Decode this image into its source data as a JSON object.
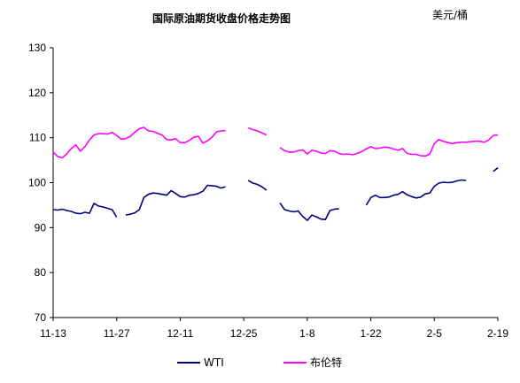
{
  "chart_data": {
    "type": "line",
    "title": "国际原油期货收盘价格走势图",
    "unit": "美元/桶",
    "ylim": [
      70,
      130
    ],
    "yticks": [
      70,
      80,
      90,
      100,
      110,
      120,
      130
    ],
    "xticks": [
      "11-13",
      "11-27",
      "12-11",
      "12-25",
      "1-8",
      "1-22",
      "2-5",
      "2-19"
    ],
    "grid": false,
    "legend_position": "bottom",
    "series": [
      {
        "name": "WTI",
        "color": "#000080",
        "segments": [
          [
            [
              "11-13",
              94.0
            ],
            [
              "11-14",
              93.9
            ],
            [
              "11-15",
              94.1
            ],
            [
              "11-16",
              93.8
            ],
            [
              "11-17",
              93.6
            ],
            [
              "11-18",
              93.2
            ],
            [
              "11-19",
              93.1
            ],
            [
              "11-20",
              93.4
            ],
            [
              "11-21",
              93.2
            ],
            [
              "11-22",
              95.4
            ],
            [
              "11-23",
              94.8
            ],
            [
              "11-24",
              94.6
            ],
            [
              "11-25",
              94.3
            ],
            [
              "11-26",
              94.0
            ],
            [
              "11-27",
              92.3
            ]
          ],
          [
            [
              "11-29",
              92.8
            ],
            [
              "11-30",
              93.0
            ],
            [
              "12-1",
              93.3
            ],
            [
              "12-2",
              94.0
            ],
            [
              "12-3",
              96.7
            ],
            [
              "12-4",
              97.4
            ],
            [
              "12-5",
              97.7
            ],
            [
              "12-6",
              97.6
            ],
            [
              "12-7",
              97.4
            ],
            [
              "12-8",
              97.2
            ],
            [
              "12-9",
              98.2
            ],
            [
              "12-10",
              97.6
            ],
            [
              "12-11",
              96.9
            ],
            [
              "12-12",
              96.8
            ],
            [
              "12-13",
              97.2
            ],
            [
              "12-14",
              97.3
            ],
            [
              "12-15",
              97.6
            ],
            [
              "12-16",
              98.1
            ],
            [
              "12-17",
              99.4
            ],
            [
              "12-18",
              99.3
            ],
            [
              "12-19",
              99.2
            ],
            [
              "12-20",
              98.8
            ],
            [
              "12-21",
              99.1
            ]
          ],
          [
            [
              "12-26",
              100.5
            ],
            [
              "12-27",
              99.9
            ],
            [
              "12-28",
              99.6
            ],
            [
              "12-29",
              99.1
            ],
            [
              "12-30",
              98.3
            ]
          ],
          [
            [
              "1-2",
              95.5
            ],
            [
              "1-3",
              94.0
            ],
            [
              "1-4",
              93.7
            ],
            [
              "1-5",
              93.5
            ],
            [
              "1-6",
              93.7
            ],
            [
              "1-7",
              92.5
            ],
            [
              "1-8",
              91.6
            ],
            [
              "1-9",
              92.8
            ],
            [
              "1-10",
              92.4
            ],
            [
              "1-11",
              91.9
            ],
            [
              "1-12",
              91.8
            ],
            [
              "1-13",
              93.8
            ],
            [
              "1-14",
              94.1
            ],
            [
              "1-15",
              94.2
            ]
          ],
          [
            [
              "1-21",
              95.0
            ],
            [
              "1-22",
              96.7
            ],
            [
              "1-23",
              97.2
            ],
            [
              "1-24",
              96.7
            ],
            [
              "1-25",
              96.7
            ],
            [
              "1-26",
              96.8
            ],
            [
              "1-27",
              97.2
            ],
            [
              "1-28",
              97.4
            ],
            [
              "1-29",
              98.0
            ],
            [
              "1-30",
              97.3
            ],
            [
              "1-31",
              96.9
            ],
            [
              "2-1",
              96.6
            ],
            [
              "2-2",
              96.8
            ],
            [
              "2-3",
              97.5
            ],
            [
              "2-4",
              97.7
            ],
            [
              "2-5",
              99.2
            ],
            [
              "2-6",
              99.9
            ],
            [
              "2-7",
              100.1
            ],
            [
              "2-8",
              100.0
            ],
            [
              "2-9",
              100.1
            ],
            [
              "2-10",
              100.4
            ],
            [
              "2-11",
              100.6
            ],
            [
              "2-12",
              100.5
            ]
          ],
          [
            [
              "2-18",
              102.5
            ],
            [
              "2-19",
              103.3
            ]
          ]
        ]
      },
      {
        "name": "布伦特",
        "color": "#ff00ff",
        "segments": [
          [
            [
              "11-13",
              106.8
            ],
            [
              "11-14",
              105.8
            ],
            [
              "11-15",
              105.5
            ],
            [
              "11-16",
              106.4
            ],
            [
              "11-17",
              107.6
            ],
            [
              "11-18",
              108.4
            ],
            [
              "11-19",
              107.0
            ],
            [
              "11-20",
              108.0
            ],
            [
              "11-21",
              109.5
            ],
            [
              "11-22",
              110.6
            ],
            [
              "11-23",
              110.9
            ],
            [
              "11-24",
              110.9
            ],
            [
              "11-25",
              110.8
            ],
            [
              "11-26",
              111.2
            ],
            [
              "11-27",
              110.5
            ],
            [
              "11-28",
              109.7
            ],
            [
              "11-29",
              109.8
            ],
            [
              "11-30",
              110.3
            ],
            [
              "12-1",
              111.2
            ],
            [
              "12-2",
              112.0
            ],
            [
              "12-3",
              112.3
            ],
            [
              "12-4",
              111.5
            ],
            [
              "12-5",
              111.4
            ],
            [
              "12-6",
              111.0
            ],
            [
              "12-7",
              110.6
            ],
            [
              "12-8",
              109.6
            ],
            [
              "12-9",
              109.5
            ],
            [
              "12-10",
              109.8
            ],
            [
              "12-11",
              108.9
            ],
            [
              "12-12",
              108.9
            ],
            [
              "12-13",
              109.4
            ],
            [
              "12-14",
              110.1
            ],
            [
              "12-15",
              110.3
            ],
            [
              "12-16",
              108.8
            ],
            [
              "12-17",
              109.3
            ],
            [
              "12-18",
              110.1
            ],
            [
              "12-19",
              111.3
            ],
            [
              "12-20",
              111.5
            ],
            [
              "12-21",
              111.6
            ]
          ],
          [
            [
              "12-26",
              112.2
            ],
            [
              "12-27",
              111.8
            ],
            [
              "12-28",
              111.5
            ],
            [
              "12-29",
              111.1
            ],
            [
              "12-30",
              110.6
            ]
          ],
          [
            [
              "1-2",
              107.8
            ],
            [
              "1-3",
              107.1
            ],
            [
              "1-4",
              106.8
            ],
            [
              "1-5",
              106.8
            ],
            [
              "1-6",
              107.1
            ],
            [
              "1-7",
              107.3
            ],
            [
              "1-8",
              106.4
            ],
            [
              "1-9",
              107.2
            ],
            [
              "1-10",
              107.0
            ],
            [
              "1-11",
              106.6
            ],
            [
              "1-12",
              106.5
            ],
            [
              "1-13",
              107.1
            ],
            [
              "1-14",
              107.0
            ],
            [
              "1-15",
              106.5
            ],
            [
              "1-16",
              106.3
            ],
            [
              "1-17",
              106.4
            ],
            [
              "1-18",
              106.2
            ],
            [
              "1-19",
              106.5
            ],
            [
              "1-20",
              106.9
            ],
            [
              "1-21",
              107.5
            ],
            [
              "1-22",
              108.0
            ],
            [
              "1-23",
              107.6
            ],
            [
              "1-24",
              107.7
            ],
            [
              "1-25",
              107.9
            ],
            [
              "1-26",
              107.8
            ],
            [
              "1-27",
              107.5
            ],
            [
              "1-28",
              107.2
            ],
            [
              "1-29",
              107.6
            ],
            [
              "1-30",
              106.5
            ],
            [
              "1-31",
              106.3
            ],
            [
              "2-1",
              106.3
            ],
            [
              "2-2",
              106.0
            ],
            [
              "2-3",
              105.9
            ],
            [
              "2-4",
              106.4
            ],
            [
              "2-5",
              108.7
            ],
            [
              "2-6",
              109.6
            ],
            [
              "2-7",
              109.2
            ],
            [
              "2-8",
              108.9
            ],
            [
              "2-9",
              108.7
            ],
            [
              "2-10",
              108.9
            ],
            [
              "2-11",
              109.0
            ],
            [
              "2-12",
              109.0
            ],
            [
              "2-13",
              109.1
            ],
            [
              "2-14",
              109.2
            ],
            [
              "2-15",
              109.2
            ],
            [
              "2-16",
              109.0
            ],
            [
              "2-17",
              109.5
            ],
            [
              "2-18",
              110.5
            ],
            [
              "2-19",
              110.6
            ]
          ]
        ]
      }
    ]
  }
}
